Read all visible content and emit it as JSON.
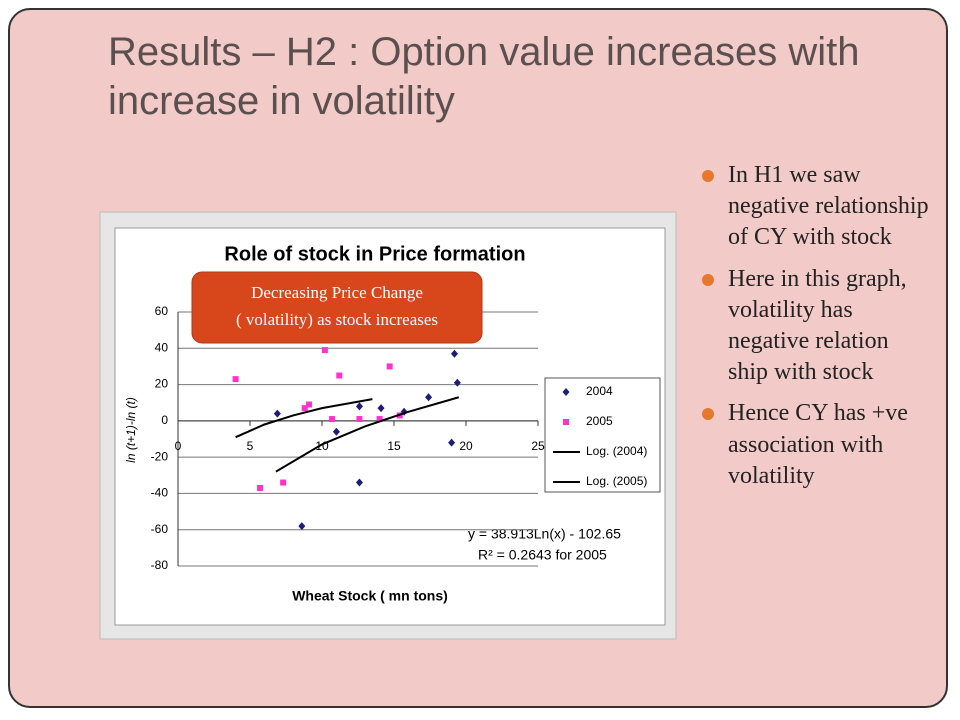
{
  "title": "Results – H2 : Option value increases with increase in volatility",
  "bullets": [
    "In H1 we saw negative relationship of CY with stock",
    "Here in this graph, volatility has negative relation ship with stock",
    "Hence CY has +ve association with volatility"
  ],
  "callout": [
    "Decreasing Price Change",
    "( volatility) as stock increases"
  ],
  "chart_data": {
    "type": "scatter",
    "title": "Role of stock in Price formation",
    "x_label": "Wheat Stock ( mn tons)",
    "y_label": "ln (t+1)-ln (t)",
    "xlim": [
      0,
      25
    ],
    "xticks": [
      0,
      5,
      10,
      15,
      20,
      25
    ],
    "ylim": [
      -80,
      60
    ],
    "yticks": [
      60,
      40,
      20,
      0,
      -20,
      -40,
      -60,
      -80
    ],
    "grid": true,
    "annotations": [
      "y = 38.913Ln(x) - 102.65",
      "R² = 0.2643 for 2005"
    ],
    "series": [
      {
        "name": "2004",
        "color": "#1c1c7a",
        "marker": "diamond",
        "x": [
          6.9,
          8.6,
          12.6,
          11.0,
          12.6,
          14.1,
          15.7,
          17.4,
          19.0,
          19.2,
          19.4
        ],
        "values": [
          4,
          -58,
          8,
          -6,
          -34,
          7,
          5,
          13,
          -12,
          37,
          21
        ]
      },
      {
        "name": "2005",
        "color": "#ff33cc",
        "marker": "square",
        "x": [
          4.0,
          5.7,
          7.3,
          8.8,
          9.1,
          10.2,
          10.7,
          11.2,
          12.6,
          14.0,
          14.7,
          15.4
        ],
        "values": [
          23,
          -37,
          -34,
          7,
          9,
          39,
          1,
          25,
          1,
          1,
          30,
          3
        ]
      },
      {
        "name": "Log. (2004)",
        "color": "#000000",
        "marker": "line",
        "x": [
          4,
          6,
          8,
          10,
          13.5
        ],
        "values": [
          -9,
          -2,
          3,
          7,
          12
        ]
      },
      {
        "name": "Log. (2005)",
        "color": "#000000",
        "marker": "line",
        "x": [
          6.8,
          10,
          13,
          16,
          19.5
        ],
        "values": [
          -28,
          -13,
          -3,
          5,
          13
        ]
      }
    ]
  }
}
